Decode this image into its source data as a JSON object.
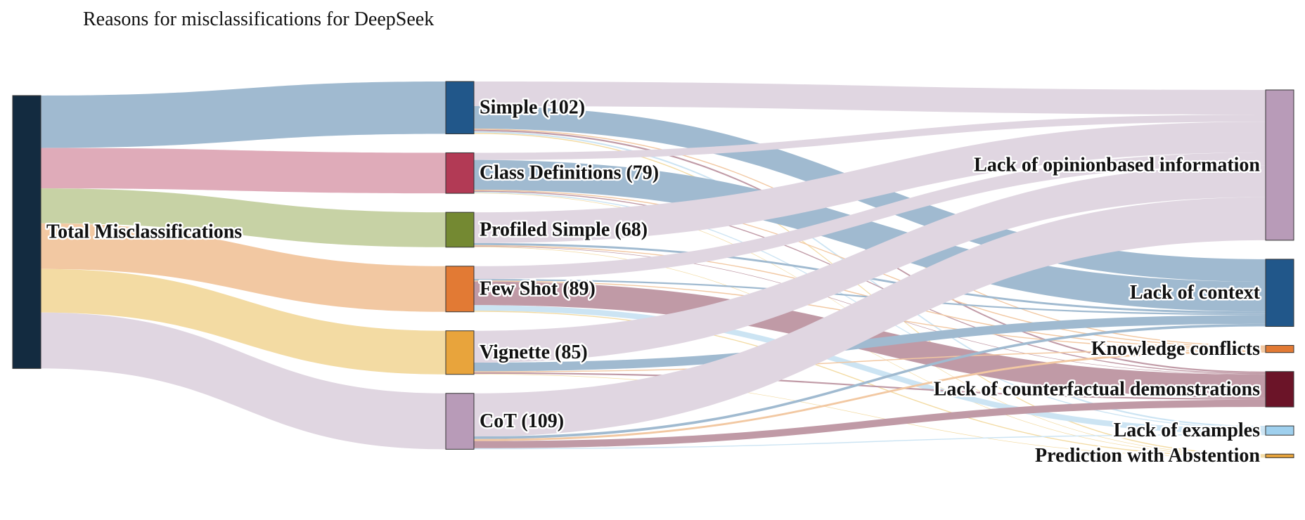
{
  "title": "Reasons for misclassifications for DeepSeek",
  "nodes": {
    "total": {
      "label": "Total Misclassifications",
      "color": "#132b40"
    },
    "simple": {
      "label": "Simple (102)",
      "value": 102,
      "color": "#21578a"
    },
    "classdef": {
      "label": "Class Definitions (79)",
      "value": 79,
      "color": "#b23a55"
    },
    "profiled": {
      "label": "Profiled Simple (68)",
      "value": 68,
      "color": "#748932"
    },
    "fewshot": {
      "label": "Few Shot (89)",
      "value": 89,
      "color": "#e27a34"
    },
    "vignette": {
      "label": "Vignette (85)",
      "value": 85,
      "color": "#e8a43c"
    },
    "cot": {
      "label": "CoT (109)",
      "value": 109,
      "color": "#b89bb8"
    },
    "opinion": {
      "label": "Lack of opinionbased information",
      "color": "#b89bb8"
    },
    "context": {
      "label": "Lack of context",
      "color": "#21578a"
    },
    "knowledge": {
      "label": "Knowledge conflicts",
      "color": "#e27a34"
    },
    "counterfactual": {
      "label": "Lack of counterfactual demonstrations",
      "color": "#6b1428"
    },
    "examples": {
      "label": "Lack of examples",
      "color": "#9fd0ee"
    },
    "abstention": {
      "label": "Prediction with Abstention",
      "color": "#e8a43c"
    }
  },
  "links": [
    {
      "source": "total",
      "target": "simple",
      "value": 102,
      "color": "#a0bad0"
    },
    {
      "source": "total",
      "target": "classdef",
      "value": 79,
      "color": "#dfabb9"
    },
    {
      "source": "total",
      "target": "profiled",
      "value": 68,
      "color": "#c7d2a5"
    },
    {
      "source": "total",
      "target": "fewshot",
      "value": 89,
      "color": "#f2c8a2"
    },
    {
      "source": "total",
      "target": "vignette",
      "value": 85,
      "color": "#f3dba3"
    },
    {
      "source": "total",
      "target": "cot",
      "value": 109,
      "color": "#e0d6e1"
    },
    {
      "source": "simple",
      "target": "opinion",
      "value": 48,
      "color": "#e0d6e1"
    },
    {
      "source": "simple",
      "target": "context",
      "value": 44,
      "color": "#a0bad0"
    },
    {
      "source": "simple",
      "target": "knowledge",
      "value": 2,
      "color": "#f2c8a2"
    },
    {
      "source": "simple",
      "target": "counterfactual",
      "value": 3,
      "color": "#c09aa6"
    },
    {
      "source": "simple",
      "target": "examples",
      "value": 3,
      "color": "#cce4f3"
    },
    {
      "source": "simple",
      "target": "abstention",
      "value": 2,
      "color": "#f3dba3"
    },
    {
      "source": "classdef",
      "target": "opinion",
      "value": 14,
      "color": "#e0d6e1"
    },
    {
      "source": "classdef",
      "target": "context",
      "value": 58,
      "color": "#a0bad0"
    },
    {
      "source": "classdef",
      "target": "knowledge",
      "value": 2,
      "color": "#f2c8a2"
    },
    {
      "source": "classdef",
      "target": "counterfactual",
      "value": 2,
      "color": "#c09aa6"
    },
    {
      "source": "classdef",
      "target": "examples",
      "value": 2,
      "color": "#cce4f3"
    },
    {
      "source": "classdef",
      "target": "abstention",
      "value": 1,
      "color": "#f3dba3"
    },
    {
      "source": "profiled",
      "target": "opinion",
      "value": 60,
      "color": "#e0d6e1"
    },
    {
      "source": "profiled",
      "target": "context",
      "value": 4,
      "color": "#a0bad0"
    },
    {
      "source": "profiled",
      "target": "knowledge",
      "value": 2,
      "color": "#f2c8a2"
    },
    {
      "source": "profiled",
      "target": "counterfactual",
      "value": 1,
      "color": "#c09aa6"
    },
    {
      "source": "profiled",
      "target": "abstention",
      "value": 1,
      "color": "#f3dba3"
    },
    {
      "source": "fewshot",
      "target": "opinion",
      "value": 25,
      "color": "#e0d6e1"
    },
    {
      "source": "fewshot",
      "target": "context",
      "value": 3,
      "color": "#a0bad0"
    },
    {
      "source": "fewshot",
      "target": "knowledge",
      "value": 2,
      "color": "#f2c8a2"
    },
    {
      "source": "fewshot",
      "target": "counterfactual",
      "value": 46,
      "color": "#c09aa6"
    },
    {
      "source": "fewshot",
      "target": "examples",
      "value": 11,
      "color": "#cce4f3"
    },
    {
      "source": "fewshot",
      "target": "abstention",
      "value": 2,
      "color": "#f3dba3"
    },
    {
      "source": "vignette",
      "target": "opinion",
      "value": 62,
      "color": "#e0d6e1"
    },
    {
      "source": "vignette",
      "target": "context",
      "value": 17,
      "color": "#a0bad0"
    },
    {
      "source": "vignette",
      "target": "knowledge",
      "value": 2,
      "color": "#f2c8a2"
    },
    {
      "source": "vignette",
      "target": "counterfactual",
      "value": 3,
      "color": "#c09aa6"
    },
    {
      "source": "vignette",
      "target": "abstention",
      "value": 1,
      "color": "#f3dba3"
    },
    {
      "source": "cot",
      "target": "opinion",
      "value": 84,
      "color": "#e0d6e1"
    },
    {
      "source": "cot",
      "target": "context",
      "value": 5,
      "color": "#a0bad0"
    },
    {
      "source": "cot",
      "target": "knowledge",
      "value": 4,
      "color": "#f2c8a2"
    },
    {
      "source": "cot",
      "target": "counterfactual",
      "value": 14,
      "color": "#c09aa6"
    },
    {
      "source": "cot",
      "target": "examples",
      "value": 2,
      "color": "#cce4f3"
    }
  ]
}
